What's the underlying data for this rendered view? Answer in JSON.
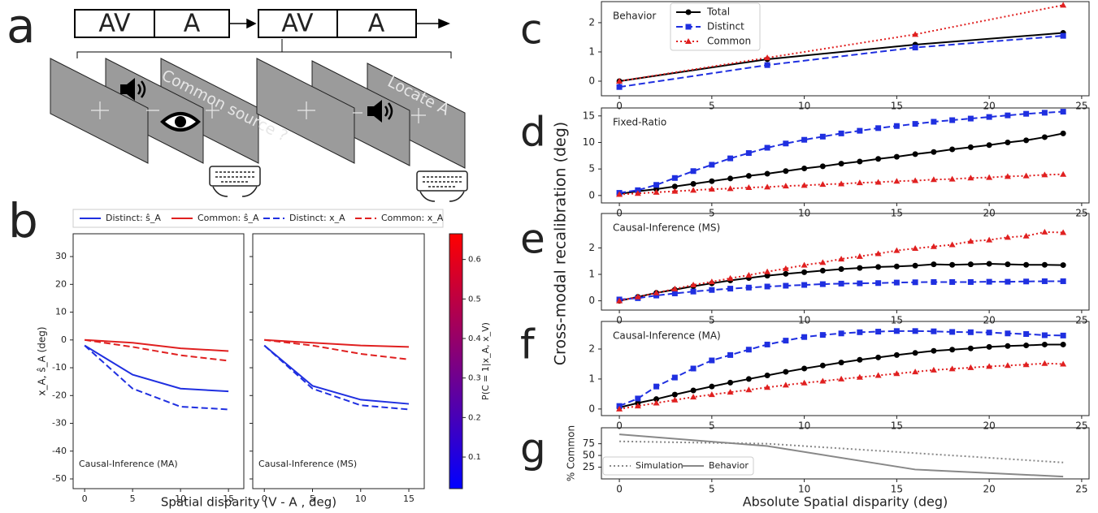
{
  "schematic": {
    "panel": "a",
    "sequence": [
      "AV",
      "A",
      "AV",
      "A"
    ],
    "screens": [
      "Common source ?",
      "Locate A"
    ]
  },
  "shared": {
    "ylabel": "Cross-modal recalibration (deg)",
    "xlabel": "Absolute Spatial disparity (deg)"
  },
  "chart_data": [
    {
      "type": "line",
      "panel": "b",
      "xlabel": "Spatial disparity (V - A , deg)",
      "ylabel": "x_A, ŝ_A (deg)",
      "x": [
        0,
        5,
        10,
        15
      ],
      "xlim": [
        -1.2,
        16.6
      ],
      "xticks": [
        0,
        5,
        10,
        15
      ],
      "ylim": [
        -53.5,
        38.2
      ],
      "yticks": [
        30,
        20,
        10,
        0,
        -10,
        -20,
        -30,
        -40,
        -50
      ],
      "series": [
        {
          "name": "Distinct: ŝ_A",
          "color": "#1f2fe0",
          "linestyle": "solid"
        },
        {
          "name": "Common: ŝ_A",
          "color": "#e02020",
          "linestyle": "solid"
        },
        {
          "name": "Distinct: x_A",
          "color": "#1f2fe0",
          "linestyle": "dashed"
        },
        {
          "name": "Common: x_A",
          "color": "#e02020",
          "linestyle": "dashed"
        }
      ],
      "subplots": [
        {
          "title": "Causal-Inference (MA)",
          "values": [
            [
              -2,
              -12.5,
              -17.5,
              -18.5
            ],
            [
              0,
              -1,
              -3,
              -4
            ],
            [
              -2,
              -17.5,
              -24,
              -25
            ],
            [
              0,
              -2.5,
              -5.5,
              -7.5
            ]
          ]
        },
        {
          "title": "Causal-Inference (MS)",
          "values": [
            [
              -2,
              -16.5,
              -21.5,
              -23
            ],
            [
              0,
              -1,
              -2,
              -2.5
            ],
            [
              -2,
              -17.5,
              -23.5,
              -25
            ],
            [
              0,
              -2,
              -5,
              -7
            ]
          ]
        }
      ],
      "colorbar": {
        "label": "P(C = 1|x_A, x_V)",
        "lim": [
          0.02,
          0.665
        ],
        "ticks": [
          0.1,
          0.2,
          0.3,
          0.4,
          0.5,
          0.6
        ],
        "colors": [
          "#0000ff",
          "#ff0000"
        ]
      }
    },
    {
      "type": "line",
      "panel": "c",
      "title": "Behavior",
      "legend": "upper center",
      "x": [
        0,
        8,
        16,
        24
      ],
      "xlim": [
        -0.97,
        25.4
      ],
      "xticks": [
        0,
        5,
        10,
        15,
        20,
        25
      ],
      "ylim": [
        -0.5,
        2.72
      ],
      "yticks": [
        0,
        1,
        2
      ],
      "series": [
        {
          "name": "Total",
          "color": "#000000",
          "marker": "circle",
          "linestyle": "solid",
          "values": [
            0,
            0.75,
            1.25,
            1.65
          ]
        },
        {
          "name": "Distinct",
          "color": "#1f2fe0",
          "marker": "square",
          "linestyle": "dashed",
          "values": [
            -0.2,
            0.55,
            1.15,
            1.55
          ]
        },
        {
          "name": "Common",
          "color": "#e02020",
          "marker": "triangle",
          "linestyle": "dotted",
          "values": [
            0,
            0.8,
            1.6,
            2.6
          ]
        }
      ]
    },
    {
      "type": "line",
      "panel": "d",
      "title": "Fixed-Ratio",
      "x": [
        0,
        1,
        2,
        3,
        4,
        5,
        6,
        7,
        8,
        9,
        10,
        11,
        12,
        13,
        14,
        15,
        16,
        17,
        18,
        19,
        20,
        21,
        22,
        23,
        24
      ],
      "xlim": [
        -0.97,
        25.4
      ],
      "xticks": [
        0,
        5,
        10,
        15,
        20,
        25
      ],
      "ylim": [
        -1.4,
        16.5
      ],
      "yticks": [
        0,
        5,
        10,
        15
      ],
      "series": [
        {
          "color": "#000000",
          "marker": "circle",
          "linestyle": "solid",
          "values": [
            0.3,
            0.8,
            1.2,
            1.7,
            2.2,
            2.7,
            3.2,
            3.7,
            4.1,
            4.6,
            5.1,
            5.5,
            6.0,
            6.4,
            6.9,
            7.3,
            7.8,
            8.2,
            8.7,
            9.1,
            9.5,
            10.0,
            10.4,
            11.0,
            11.7
          ]
        },
        {
          "color": "#1f2fe0",
          "marker": "square",
          "linestyle": "dashed",
          "values": [
            0.5,
            1.0,
            2.0,
            3.3,
            4.6,
            5.8,
            7.0,
            8.0,
            9.0,
            9.8,
            10.5,
            11.1,
            11.7,
            12.2,
            12.7,
            13.1,
            13.5,
            13.9,
            14.2,
            14.5,
            14.8,
            15.1,
            15.4,
            15.6,
            15.8
          ]
        },
        {
          "color": "#e02020",
          "marker": "triangle",
          "linestyle": "dotted",
          "values": [
            0.2,
            0.4,
            0.6,
            0.8,
            1.0,
            1.2,
            1.3,
            1.5,
            1.6,
            1.8,
            1.9,
            2.1,
            2.2,
            2.4,
            2.5,
            2.7,
            2.8,
            3.0,
            3.1,
            3.3,
            3.4,
            3.6,
            3.7,
            3.9,
            4.0
          ]
        }
      ]
    },
    {
      "type": "line",
      "panel": "e",
      "title": "Causal-Inference (MS)",
      "x": [
        0,
        1,
        2,
        3,
        4,
        5,
        6,
        7,
        8,
        9,
        10,
        11,
        12,
        13,
        14,
        15,
        16,
        17,
        18,
        19,
        20,
        21,
        22,
        23,
        24
      ],
      "xlim": [
        -0.97,
        25.4
      ],
      "xticks": [
        0,
        5,
        10,
        15,
        20,
        25
      ],
      "ylim": [
        -0.35,
        3.3
      ],
      "yticks": [
        0,
        1,
        2
      ],
      "series": [
        {
          "color": "#000000",
          "marker": "circle",
          "linestyle": "solid",
          "values": [
            0,
            0.15,
            0.3,
            0.42,
            0.55,
            0.66,
            0.77,
            0.86,
            0.95,
            1.02,
            1.08,
            1.14,
            1.2,
            1.24,
            1.28,
            1.3,
            1.33,
            1.38,
            1.36,
            1.38,
            1.4,
            1.38,
            1.36,
            1.36,
            1.35
          ]
        },
        {
          "color": "#1f2fe0",
          "marker": "square",
          "linestyle": "dashed",
          "values": [
            0.05,
            0.1,
            0.2,
            0.28,
            0.35,
            0.41,
            0.46,
            0.5,
            0.54,
            0.57,
            0.6,
            0.63,
            0.65,
            0.66,
            0.67,
            0.69,
            0.7,
            0.71,
            0.71,
            0.71,
            0.72,
            0.72,
            0.73,
            0.74,
            0.74
          ]
        },
        {
          "color": "#e02020",
          "marker": "triangle",
          "linestyle": "dotted",
          "values": [
            0,
            0.15,
            0.3,
            0.45,
            0.6,
            0.72,
            0.85,
            0.97,
            1.1,
            1.22,
            1.35,
            1.45,
            1.58,
            1.68,
            1.78,
            1.9,
            1.98,
            2.05,
            2.12,
            2.25,
            2.3,
            2.4,
            2.45,
            2.6,
            2.58
          ]
        }
      ]
    },
    {
      "type": "line",
      "panel": "f",
      "title": "Causal-Inference (MA)",
      "x": [
        0,
        1,
        2,
        3,
        4,
        5,
        6,
        7,
        8,
        9,
        10,
        11,
        12,
        13,
        14,
        15,
        16,
        17,
        18,
        19,
        20,
        21,
        22,
        23,
        24
      ],
      "xlim": [
        -0.97,
        25.4
      ],
      "xticks": [
        0,
        5,
        10,
        15,
        20,
        25
      ],
      "ylim": [
        -0.22,
        2.92
      ],
      "yticks": [
        0,
        1,
        2
      ],
      "series": [
        {
          "color": "#000000",
          "marker": "circle",
          "linestyle": "solid",
          "values": [
            0.05,
            0.2,
            0.33,
            0.48,
            0.62,
            0.75,
            0.88,
            1.0,
            1.12,
            1.24,
            1.35,
            1.45,
            1.55,
            1.64,
            1.72,
            1.8,
            1.87,
            1.94,
            1.98,
            2.02,
            2.07,
            2.1,
            2.12,
            2.15,
            2.15
          ]
        },
        {
          "color": "#1f2fe0",
          "marker": "square",
          "linestyle": "dashed",
          "values": [
            0.1,
            0.35,
            0.75,
            1.05,
            1.35,
            1.62,
            1.8,
            1.98,
            2.15,
            2.28,
            2.4,
            2.47,
            2.52,
            2.56,
            2.58,
            2.6,
            2.6,
            2.59,
            2.57,
            2.56,
            2.55,
            2.52,
            2.5,
            2.46,
            2.45
          ]
        },
        {
          "color": "#e02020",
          "marker": "triangle",
          "linestyle": "dotted",
          "values": [
            0,
            0.1,
            0.2,
            0.3,
            0.4,
            0.48,
            0.56,
            0.64,
            0.72,
            0.8,
            0.87,
            0.93,
            1.0,
            1.06,
            1.12,
            1.18,
            1.24,
            1.3,
            1.34,
            1.38,
            1.42,
            1.45,
            1.48,
            1.52,
            1.5
          ]
        }
      ]
    },
    {
      "type": "line",
      "panel": "g",
      "ylabel": "% Common",
      "legend": "lower left",
      "x": [
        0,
        8,
        16,
        24
      ],
      "xlim": [
        -0.97,
        25.4
      ],
      "xticks": [
        0,
        5,
        10,
        15,
        20,
        25
      ],
      "ylim": [
        0,
        109
      ],
      "yticks": [
        25,
        50,
        75
      ],
      "series": [
        {
          "name": "Simulation",
          "color": "#888888",
          "linestyle": "dotted",
          "values": [
            80,
            75,
            55,
            35
          ]
        },
        {
          "name": "Behavior",
          "color": "#888888",
          "linestyle": "solid",
          "values": [
            95,
            70,
            20,
            5
          ]
        }
      ]
    }
  ]
}
